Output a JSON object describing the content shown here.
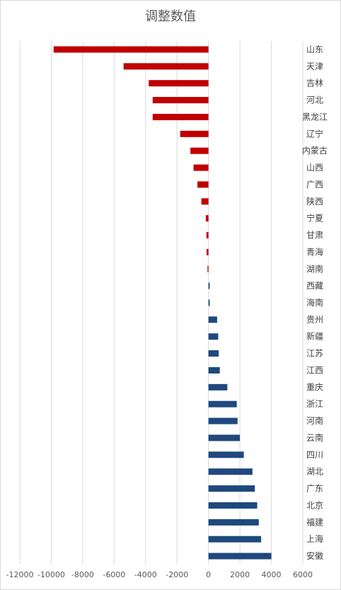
{
  "chart_data": {
    "type": "bar",
    "orientation": "horizontal",
    "title": "调整数值",
    "xlim": [
      -12000,
      6000
    ],
    "xticks": [
      -12000,
      -10000,
      -8000,
      -6000,
      -4000,
      -2000,
      0,
      2000,
      4000,
      6000
    ],
    "grid": true,
    "legend": "none",
    "negative_color": "#c00000",
    "positive_color": "#1f497d",
    "categories": [
      "山东",
      "天津",
      "吉林",
      "河北",
      "黑龙江",
      "辽宁",
      "内蒙古",
      "山西",
      "广西",
      "陕西",
      "宁夏",
      "甘肃",
      "青海",
      "湖南",
      "西藏",
      "海南",
      "贵州",
      "新疆",
      "江苏",
      "江西",
      "重庆",
      "浙江",
      "河南",
      "云南",
      "四川",
      "湖北",
      "广东",
      "北京",
      "福建",
      "上海",
      "安徽"
    ],
    "values": [
      -9850,
      -5400,
      -3800,
      -3550,
      -3550,
      -1800,
      -1150,
      -950,
      -700,
      -450,
      -170,
      -130,
      -120,
      -60,
      80,
      80,
      550,
      620,
      650,
      720,
      1200,
      1800,
      1850,
      2000,
      2250,
      2800,
      2950,
      3100,
      3200,
      3350,
      4000
    ]
  }
}
